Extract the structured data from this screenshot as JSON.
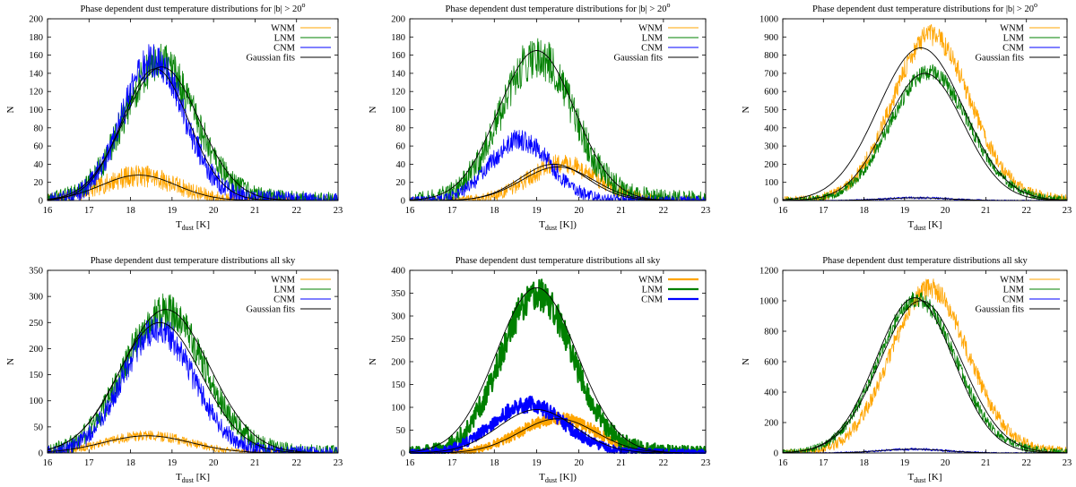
{
  "figure": {
    "colors": {
      "WNM": "#ffa500",
      "LNM": "#008000",
      "CNM": "#0000ff",
      "fit": "#000000"
    },
    "xlabel_main": "T",
    "xlabel_sub": "dust",
    "xlabel_unit_a": " [K]",
    "xlabel_unit_b": " [K])"
  },
  "chart_data": [
    {
      "type": "line",
      "panel": "top-left",
      "title_main": "Phase dependent dust temperature distributions for |b| > 20",
      "title_sup": "o",
      "xlabel_unit": " [K]",
      "ylabel": "N",
      "xlim": [
        16,
        23
      ],
      "ylim": [
        0,
        200
      ],
      "yticks": [
        0,
        20,
        40,
        60,
        80,
        100,
        120,
        140,
        160,
        180,
        200
      ],
      "xticks": [
        16,
        17,
        18,
        19,
        20,
        21,
        22,
        23
      ],
      "legend": [
        "WNM",
        "LNM",
        "CNM",
        "Gaussian fits"
      ],
      "legend_position": "top-right",
      "thick_lines": false,
      "series": [
        {
          "name": "WNM",
          "peak": 27,
          "mu": 18.2,
          "sigma": 0.9,
          "noise": 12,
          "fit": {
            "amp": 28,
            "mu": 18.2,
            "sigma": 0.9
          }
        },
        {
          "name": "LNM",
          "peak": 150,
          "mu": 18.7,
          "sigma": 0.85,
          "noise": 22,
          "fit": {
            "amp": 147,
            "mu": 18.75,
            "sigma": 0.9
          }
        },
        {
          "name": "CNM",
          "peak": 152,
          "mu": 18.55,
          "sigma": 0.75,
          "noise": 20,
          "fit": {
            "amp": 145,
            "mu": 18.6,
            "sigma": 0.8
          }
        }
      ]
    },
    {
      "type": "line",
      "panel": "top-middle",
      "title_main": "Phase dependent dust temperature distributions for |b| > 20",
      "title_sup": "o",
      "xlabel_unit": " [K])",
      "ylabel": "N",
      "xlim": [
        16,
        23
      ],
      "ylim": [
        0,
        200
      ],
      "yticks": [
        0,
        20,
        40,
        60,
        80,
        100,
        120,
        140,
        160,
        180,
        200
      ],
      "xticks": [
        16,
        17,
        18,
        19,
        20,
        21,
        22,
        23
      ],
      "legend": [
        "WNM",
        "LNM",
        "CNM",
        "Gaussian fits"
      ],
      "legend_position": "top-right",
      "thick_lines": false,
      "series": [
        {
          "name": "WNM",
          "peak": 40,
          "mu": 19.6,
          "sigma": 0.8,
          "noise": 11,
          "fit": {
            "amp": 37,
            "mu": 19.5,
            "sigma": 0.85
          }
        },
        {
          "name": "LNM",
          "peak": 158,
          "mu": 19.0,
          "sigma": 0.85,
          "noise": 24,
          "fit": {
            "amp": 165,
            "mu": 19.0,
            "sigma": 0.9
          }
        },
        {
          "name": "CNM",
          "peak": 66,
          "mu": 18.6,
          "sigma": 0.7,
          "noise": 12,
          "fit": {
            "amp": 40,
            "mu": 19.4,
            "sigma": 0.8
          }
        }
      ]
    },
    {
      "type": "line",
      "panel": "top-right",
      "title_main": "Phase dependent dust temperature distributions for |b| > 20",
      "title_sup": "o",
      "xlabel_unit": " [K]",
      "ylabel": "N",
      "xlim": [
        16,
        23
      ],
      "ylim": [
        0,
        1000
      ],
      "yticks": [
        0,
        100,
        200,
        300,
        400,
        500,
        600,
        700,
        800,
        900,
        1000
      ],
      "xticks": [
        16,
        17,
        18,
        19,
        20,
        21,
        22,
        23
      ],
      "legend": [
        "WNM",
        "LNM",
        "CNM",
        "Gaussian fits"
      ],
      "legend_position": "top-right",
      "thick_lines": false,
      "series": [
        {
          "name": "WNM",
          "peak": 900,
          "mu": 19.65,
          "sigma": 0.95,
          "noise": 60,
          "fit": {
            "amp": 840,
            "mu": 19.4,
            "sigma": 1.05
          }
        },
        {
          "name": "LNM",
          "peak": 700,
          "mu": 19.6,
          "sigma": 0.95,
          "noise": 45,
          "fit": {
            "amp": 700,
            "mu": 19.5,
            "sigma": 0.95
          }
        },
        {
          "name": "CNM",
          "peak": 15,
          "mu": 19.3,
          "sigma": 0.8,
          "noise": 6,
          "fit": {
            "amp": 15,
            "mu": 19.3,
            "sigma": 0.8
          }
        }
      ]
    },
    {
      "type": "line",
      "panel": "bottom-left",
      "title_main": "Phase dependent dust temperature distributions all sky",
      "title_sup": "",
      "xlabel_unit": " [K]",
      "ylabel": "N",
      "xlim": [
        16,
        23
      ],
      "ylim": [
        0,
        350
      ],
      "yticks": [
        0,
        50,
        100,
        150,
        200,
        250,
        300,
        350
      ],
      "xticks": [
        16,
        17,
        18,
        19,
        20,
        21,
        22,
        23
      ],
      "legend": [
        "WNM",
        "LNM",
        "CNM",
        "Gaussian fits"
      ],
      "legend_position": "top-right",
      "thick_lines": false,
      "series": [
        {
          "name": "WNM",
          "peak": 33,
          "mu": 18.4,
          "sigma": 1.0,
          "noise": 10,
          "fit": {
            "amp": 33,
            "mu": 18.4,
            "sigma": 1.05
          }
        },
        {
          "name": "LNM",
          "peak": 270,
          "mu": 18.8,
          "sigma": 0.95,
          "noise": 35,
          "fit": {
            "amp": 275,
            "mu": 18.85,
            "sigma": 1.05
          }
        },
        {
          "name": "CNM",
          "peak": 235,
          "mu": 18.65,
          "sigma": 0.85,
          "noise": 28,
          "fit": {
            "amp": 250,
            "mu": 18.7,
            "sigma": 1.0
          }
        }
      ]
    },
    {
      "type": "line",
      "panel": "bottom-middle",
      "title_main": "Phase dependent dust temperature distributions all sky",
      "title_sup": "",
      "xlabel_unit": " [K])",
      "ylabel": "N",
      "xlim": [
        16,
        23
      ],
      "ylim": [
        0,
        400
      ],
      "yticks": [
        0,
        50,
        100,
        150,
        200,
        250,
        300,
        350,
        400
      ],
      "xticks": [
        16,
        17,
        18,
        19,
        20,
        21,
        22,
        23
      ],
      "legend": [
        "WNM",
        "LNM",
        "CNM"
      ],
      "legend_position": "top-right",
      "thick_lines": true,
      "series": [
        {
          "name": "WNM",
          "peak": 75,
          "mu": 19.5,
          "sigma": 0.9,
          "noise": 14,
          "fit": {
            "amp": 75,
            "mu": 19.5,
            "sigma": 0.9
          }
        },
        {
          "name": "LNM",
          "peak": 345,
          "mu": 19.0,
          "sigma": 0.85,
          "noise": 35,
          "fit": {
            "amp": 362,
            "mu": 19.0,
            "sigma": 0.95
          }
        },
        {
          "name": "CNM",
          "peak": 105,
          "mu": 18.8,
          "sigma": 0.85,
          "noise": 18,
          "fit": {
            "amp": 95,
            "mu": 19.0,
            "sigma": 0.9
          }
        }
      ]
    },
    {
      "type": "line",
      "panel": "bottom-right",
      "title_main": "Phase dependent dust temperature distributions all sky",
      "title_sup": "",
      "xlabel_unit": " [K]",
      "ylabel": "N",
      "xlim": [
        16,
        23
      ],
      "ylim": [
        0,
        1200
      ],
      "yticks": [
        0,
        200,
        400,
        600,
        800,
        1000,
        1200
      ],
      "xticks": [
        16,
        17,
        18,
        19,
        20,
        21,
        22,
        23
      ],
      "legend": [
        "WNM",
        "LNM",
        "CNM",
        "Gaussian fits"
      ],
      "legend_position": "top-right",
      "thick_lines": false,
      "series": [
        {
          "name": "WNM",
          "peak": 1070,
          "mu": 19.6,
          "sigma": 0.95,
          "noise": 70,
          "fit": {
            "amp": 1000,
            "mu": 19.4,
            "sigma": 1.0
          }
        },
        {
          "name": "LNM",
          "peak": 1000,
          "mu": 19.3,
          "sigma": 0.95,
          "noise": 55,
          "fit": {
            "amp": 1020,
            "mu": 19.25,
            "sigma": 0.95
          }
        },
        {
          "name": "CNM",
          "peak": 25,
          "mu": 19.2,
          "sigma": 0.8,
          "noise": 8,
          "fit": {
            "amp": 25,
            "mu": 19.2,
            "sigma": 0.8
          }
        }
      ]
    }
  ]
}
